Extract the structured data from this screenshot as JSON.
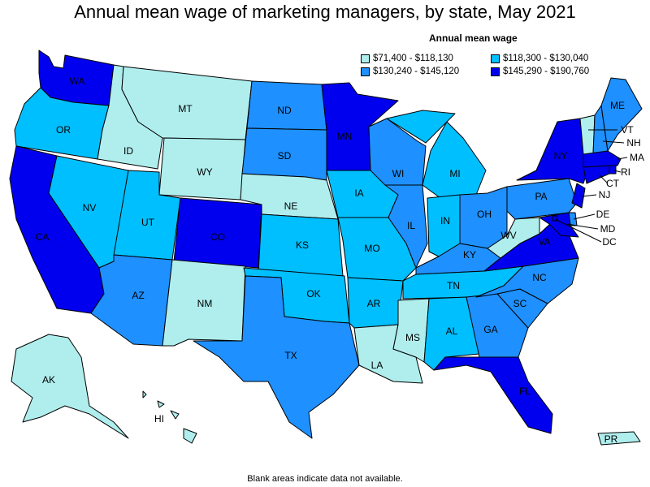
{
  "title": "Annual mean wage of marketing managers, by state, May 2021",
  "legend": {
    "title": "Annual mean wage",
    "items": [
      {
        "label": "$71,400 - $118,130",
        "color": "#b0eeee"
      },
      {
        "label": "$118,300 - $130,040",
        "color": "#00bfff"
      },
      {
        "label": "$130,240 - $145,120",
        "color": "#1e90ff"
      },
      {
        "label": "$145,290 - $190,760",
        "color": "#0000ee"
      }
    ]
  },
  "footnote": "Blank areas indicate data not available.",
  "states": {
    "WA": {
      "label": "WA",
      "bin": 3
    },
    "OR": {
      "label": "OR",
      "bin": 1
    },
    "CA": {
      "label": "CA",
      "bin": 3
    },
    "ID": {
      "label": "ID",
      "bin": 0
    },
    "NV": {
      "label": "NV",
      "bin": 1
    },
    "MT": {
      "label": "MT",
      "bin": 0
    },
    "WY": {
      "label": "WY",
      "bin": 0
    },
    "UT": {
      "label": "UT",
      "bin": 1
    },
    "AZ": {
      "label": "AZ",
      "bin": 2
    },
    "CO": {
      "label": "CO",
      "bin": 3
    },
    "NM": {
      "label": "NM",
      "bin": 0
    },
    "ND": {
      "label": "ND",
      "bin": 2
    },
    "SD": {
      "label": "SD",
      "bin": 2
    },
    "NE": {
      "label": "NE",
      "bin": 0
    },
    "KS": {
      "label": "KS",
      "bin": 1
    },
    "OK": {
      "label": "OK",
      "bin": 1
    },
    "TX": {
      "label": "TX",
      "bin": 2
    },
    "MN": {
      "label": "MN",
      "bin": 3
    },
    "IA": {
      "label": "IA",
      "bin": 1
    },
    "MO": {
      "label": "MO",
      "bin": 1
    },
    "AR": {
      "label": "AR",
      "bin": 1
    },
    "LA": {
      "label": "LA",
      "bin": 0
    },
    "WI": {
      "label": "WI",
      "bin": 2
    },
    "IL": {
      "label": "IL",
      "bin": 2
    },
    "MI": {
      "label": "MI",
      "bin": 1
    },
    "IN": {
      "label": "IN",
      "bin": 1
    },
    "OH": {
      "label": "OH",
      "bin": 2
    },
    "KY": {
      "label": "KY",
      "bin": 2
    },
    "TN": {
      "label": "TN",
      "bin": 1
    },
    "MS": {
      "label": "MS",
      "bin": 0
    },
    "AL": {
      "label": "AL",
      "bin": 1
    },
    "GA": {
      "label": "GA",
      "bin": 2
    },
    "FL": {
      "label": "FL",
      "bin": 3
    },
    "SC": {
      "label": "SC",
      "bin": 2
    },
    "NC": {
      "label": "NC",
      "bin": 2
    },
    "VA": {
      "label": "VA",
      "bin": 3
    },
    "WV": {
      "label": "WV",
      "bin": 0
    },
    "PA": {
      "label": "PA",
      "bin": 2
    },
    "NY": {
      "label": "NY",
      "bin": 3
    },
    "VT": {
      "label": "VT",
      "bin": 0
    },
    "NH": {
      "label": "NH",
      "bin": 2
    },
    "ME": {
      "label": "ME",
      "bin": 2
    },
    "MA": {
      "label": "MA",
      "bin": 3
    },
    "RI": {
      "label": "RI",
      "bin": 3
    },
    "CT": {
      "label": "CT",
      "bin": 3
    },
    "NJ": {
      "label": "NJ",
      "bin": 3
    },
    "DE": {
      "label": "DE",
      "bin": 2
    },
    "MD": {
      "label": "MD",
      "bin": 3
    },
    "DC": {
      "label": "DC",
      "bin": 3
    },
    "AK": {
      "label": "AK",
      "bin": 0
    },
    "HI": {
      "label": "HI",
      "bin": 0
    },
    "PR": {
      "label": "PR",
      "bin": 0
    }
  }
}
